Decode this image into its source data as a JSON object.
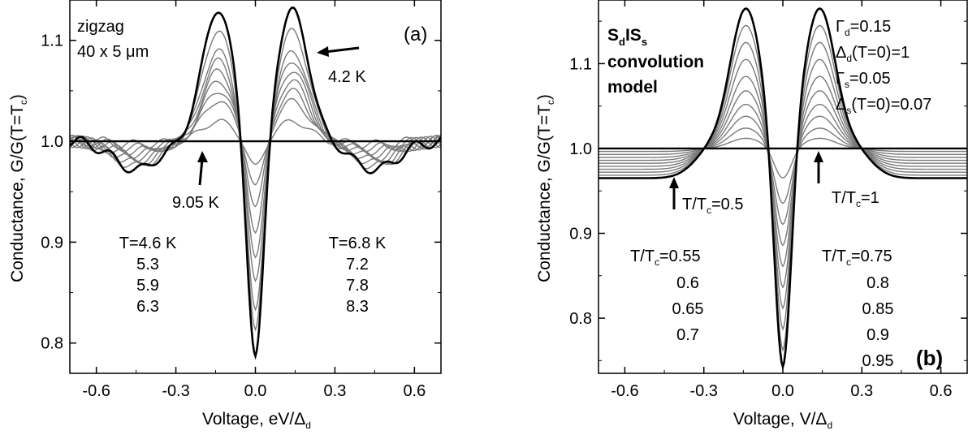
{
  "chart_data": [
    {
      "panel_label": "(a)",
      "type": "line",
      "xlabel": "Voltage, eV/",
      "xlabel_symbol": "Δ",
      "xlabel_sub": "d",
      "ylabel": "Conductance, G/G(T=T",
      "ylabel_sub": "c",
      "ylabel_close": ")",
      "xlim": [
        -0.7,
        0.7
      ],
      "ylim": [
        0.77,
        1.14
      ],
      "xticks": [
        {
          "v": -0.6,
          "label": "-0.6"
        },
        {
          "v": -0.3,
          "label": "-0.3"
        },
        {
          "v": 0.0,
          "label": "0.0"
        },
        {
          "v": 0.3,
          "label": "0.3"
        },
        {
          "v": 0.6,
          "label": "0.6"
        }
      ],
      "yticks": [
        {
          "v": 0.8,
          "label": "0.8"
        },
        {
          "v": 0.9,
          "label": "0.9"
        },
        {
          "v": 1.0,
          "label": "1.0"
        },
        {
          "v": 1.1,
          "label": "1.1"
        }
      ],
      "sample_line1": "zigzag",
      "sample_line2": "40 x 5 ",
      "sample_mu": "μ",
      "sample_unit": "m",
      "arrow_label_top": "4.2 K",
      "arrow_label_mid": "9.05 K",
      "temps_left": [
        "T=4.6 K",
        "5.3",
        "5.9",
        "6.3"
      ],
      "temps_right": [
        "T=6.8 K",
        "7.2",
        "7.8",
        "8.3"
      ],
      "temperatures_K": [
        4.2,
        4.6,
        5.3,
        5.9,
        6.3,
        6.8,
        7.2,
        7.8,
        8.3,
        9.05
      ],
      "curve_summary": {
        "peak_x": [
          -0.14,
          0.14
        ],
        "peak_heights": [
          1.13,
          1.11,
          1.09,
          1.08,
          1.07,
          1.06,
          1.05,
          1.04,
          1.02,
          1.0
        ],
        "zero_bias_values": [
          0.785,
          0.81,
          0.83,
          0.86,
          0.885,
          0.91,
          0.935,
          0.955,
          0.975,
          1.0
        ],
        "dip_x": [
          -0.45,
          0.45
        ],
        "dip_depth_lowest_T": 0.028
      },
      "colors": {
        "lowest_T": "#000000",
        "highest_T": "#000000",
        "intermediate": "#7a7a7a"
      }
    },
    {
      "panel_label": "(b)",
      "type": "line",
      "xlabel": "Voltage, V/",
      "xlabel_symbol": "Δ",
      "xlabel_sub": "d",
      "ylabel": "Conductance, G/G(T=T",
      "ylabel_sub": "c",
      "ylabel_close": ")",
      "xlim": [
        -0.7,
        0.7
      ],
      "ylim": [
        0.735,
        1.175
      ],
      "xticks": [
        {
          "v": -0.6,
          "label": "-0.6"
        },
        {
          "v": -0.3,
          "label": "-0.3"
        },
        {
          "v": 0.0,
          "label": "0.0"
        },
        {
          "v": 0.3,
          "label": "0.3"
        },
        {
          "v": 0.6,
          "label": "0.6"
        }
      ],
      "yticks": [
        {
          "v": 0.8,
          "label": "0.8"
        },
        {
          "v": 0.9,
          "label": "0.9"
        },
        {
          "v": 1.0,
          "label": "1.0"
        },
        {
          "v": 1.1,
          "label": "1.1"
        }
      ],
      "model_S": "S",
      "model_d": "d",
      "model_IS": "IS",
      "model_s": "s",
      "model_line2": "convolution",
      "model_line3": "model",
      "params": [
        {
          "sym": "Γ",
          "sub": "d",
          "rest": "=0.15"
        },
        {
          "sym": "Δ",
          "sub": "d",
          "rest": "(T=0)=1"
        },
        {
          "sym": "Γ",
          "sub": "s",
          "rest": "=0.05"
        },
        {
          "sym": "Δ",
          "sub": "s",
          "rest": "(T=0)=0.07"
        }
      ],
      "arrow_left_label": "T/T",
      "arrow_left_sub": "c",
      "arrow_left_val": "=0.5",
      "arrow_right_label": "T/T",
      "arrow_right_sub": "c",
      "arrow_right_val": "=1",
      "tleft_head": "T/T",
      "tleft_sub": "c",
      "tleft_val": "=0.55",
      "tleft_rest": [
        "0.6",
        "0.65",
        "0.7"
      ],
      "tright_head": "T/T",
      "tright_sub": "c",
      "tright_val": "=0.75",
      "tright_rest": [
        "0.8",
        "0.85",
        "0.9",
        "0.95"
      ],
      "t_over_tc": [
        0.5,
        0.55,
        0.6,
        0.65,
        0.7,
        0.75,
        0.8,
        0.85,
        0.9,
        0.95,
        1.0
      ],
      "curve_summary": {
        "peak_x": [
          -0.14,
          0.14
        ],
        "peak_heights": [
          1.165,
          1.145,
          1.125,
          1.105,
          1.085,
          1.068,
          1.052,
          1.038,
          1.024,
          1.012,
          1.0
        ],
        "zero_bias_values": [
          0.74,
          0.76,
          0.785,
          0.81,
          0.835,
          0.86,
          0.885,
          0.91,
          0.935,
          0.965,
          1.0
        ],
        "edge_value_lowest_T": 0.965
      },
      "colors": {
        "lowest_T": "#000000",
        "highest_T": "#000000",
        "intermediate": "#7a7a7a"
      }
    }
  ]
}
